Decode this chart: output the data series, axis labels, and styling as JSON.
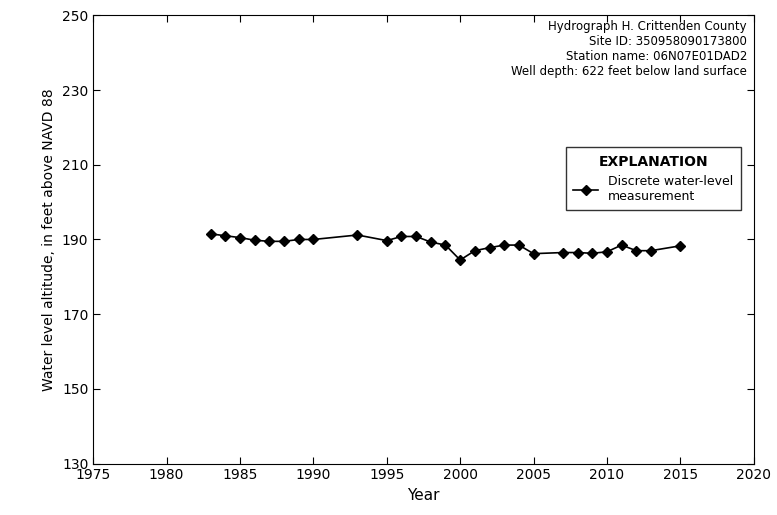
{
  "years": [
    1983,
    1984,
    1985,
    1986,
    1987,
    1988,
    1989,
    1990,
    1993,
    1995,
    1996,
    1997,
    1998,
    1999,
    2000,
    2001,
    2002,
    2003,
    2004,
    2005,
    2007,
    2008,
    2009,
    2010,
    2011,
    2012,
    2013,
    2015
  ],
  "values": [
    191.5,
    191.0,
    190.5,
    189.8,
    189.5,
    189.5,
    190.0,
    190.0,
    191.2,
    189.7,
    190.8,
    190.8,
    189.3,
    188.5,
    184.5,
    187.0,
    187.8,
    188.5,
    188.5,
    186.2,
    186.5,
    186.5,
    186.3,
    186.7,
    188.5,
    187.0,
    187.0,
    188.3
  ],
  "xlim": [
    1975,
    2020
  ],
  "ylim": [
    130,
    250
  ],
  "xticks": [
    1975,
    1980,
    1985,
    1990,
    1995,
    2000,
    2005,
    2010,
    2015,
    2020
  ],
  "yticks": [
    130,
    150,
    170,
    190,
    210,
    230,
    250
  ],
  "xlabel": "Year",
  "ylabel": "Water level altitude, in feet above NAVD 88",
  "title_text": "Hydrograph H. Crittenden County\nSite ID: 350958090173800\nStation name: 06N07E01DAD2\nWell depth: 622 feet below land surface",
  "explanation_title": "EXPLANATION",
  "legend_label": "Discrete water-level\nmeasurement",
  "line_color": "#000000",
  "marker": "D",
  "markersize": 5,
  "linewidth": 1.2,
  "figwidth": 7.77,
  "figheight": 5.15,
  "dpi": 100
}
